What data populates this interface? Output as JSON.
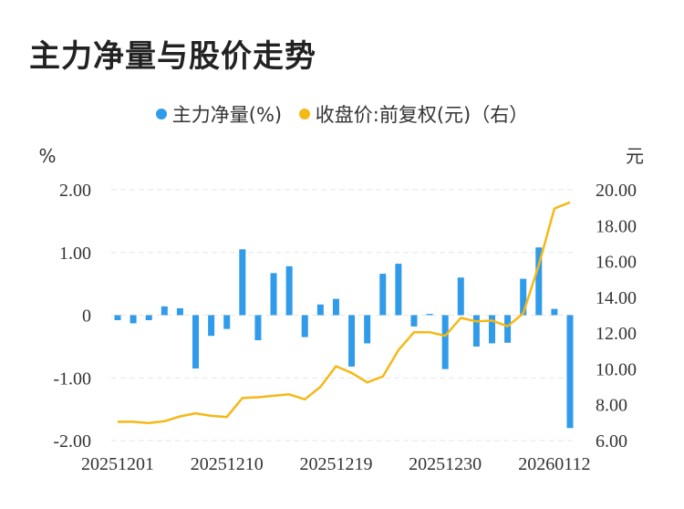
{
  "title": "主力净量与股价走势",
  "legend": {
    "bar_label": "主力净量(%)",
    "line_label": "收盘价:前复权(元)（右）"
  },
  "colors": {
    "bar": "#2f9bea",
    "line": "#f5b816",
    "grid": "#e6e6e6"
  },
  "axes": {
    "left_unit": "%",
    "right_unit": "元",
    "left_ticks": [
      "2.00",
      "1.00",
      "0",
      "-1.00",
      "-2.00"
    ],
    "right_ticks": [
      "20.00",
      "18.00",
      "16.00",
      "14.00",
      "12.00",
      "10.00",
      "8.00",
      "6.00"
    ],
    "x_ticks": [
      "20251201",
      "20251210",
      "20251219",
      "20251230",
      "20260112"
    ]
  },
  "chart_data": {
    "type": "bar+line",
    "title": "主力净量与股价走势",
    "x": [
      "20251201",
      "20251202",
      "20251203",
      "20251204",
      "20251205",
      "20251208",
      "20251209",
      "20251210",
      "20251211",
      "20251212",
      "20251215",
      "20251216",
      "20251217",
      "20251218",
      "20251219",
      "20251222",
      "20251223",
      "20251224",
      "20251225",
      "20251226",
      "20251229",
      "20251230",
      "20251231",
      "20260105",
      "20260106",
      "20260107",
      "20260108",
      "20260109",
      "20260112",
      "20260113"
    ],
    "series": [
      {
        "name": "主力净量(%)",
        "type": "bar",
        "axis": "left",
        "values": [
          -0.08,
          -0.13,
          -0.08,
          0.14,
          0.11,
          -0.85,
          -0.33,
          -0.22,
          1.05,
          -0.4,
          0.67,
          0.78,
          -0.35,
          0.17,
          0.26,
          -0.82,
          -0.45,
          0.66,
          0.82,
          -0.18,
          0.02,
          -0.86,
          0.6,
          -0.5,
          -0.45,
          -0.44,
          0.58,
          1.08,
          0.1,
          -1.8
        ]
      },
      {
        "name": "收盘价:前复权(元)（右）",
        "type": "line",
        "axis": "right",
        "values": [
          7.05,
          7.05,
          6.98,
          7.08,
          7.35,
          7.52,
          7.38,
          7.32,
          8.38,
          8.42,
          8.5,
          8.58,
          8.3,
          9.0,
          10.15,
          9.78,
          9.25,
          9.58,
          11.05,
          12.05,
          12.05,
          11.85,
          12.85,
          12.65,
          12.7,
          12.38,
          13.1,
          15.8,
          18.95,
          19.3
        ]
      }
    ],
    "ylim_left": [
      -2,
      2
    ],
    "ylim_right": [
      6,
      20
    ],
    "grid": true,
    "legend_position": "top-center"
  }
}
